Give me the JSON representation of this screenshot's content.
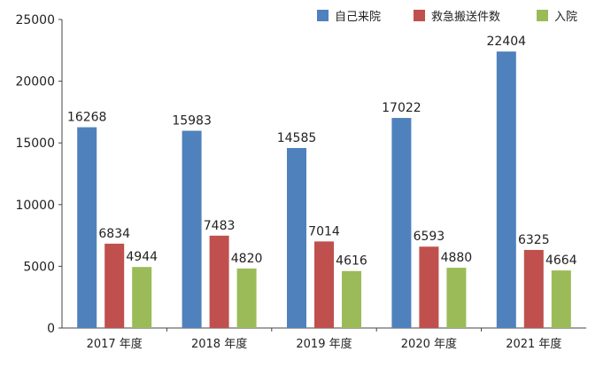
{
  "chart_data": {
    "type": "bar",
    "categories": [
      "2017 年度",
      "2018 年度",
      "2019 年度",
      "2020 年度",
      "2021 年度"
    ],
    "series": [
      {
        "name": "自己来院",
        "color": "#4f81bd",
        "values": [
          16268,
          15983,
          14585,
          17022,
          22404
        ]
      },
      {
        "name": "救急搬送件数",
        "color": "#c0504d",
        "values": [
          6834,
          7483,
          7014,
          6593,
          6325
        ]
      },
      {
        "name": "入院",
        "color": "#9bbb59",
        "values": [
          4944,
          4820,
          4616,
          4880,
          4664
        ]
      }
    ],
    "title": "",
    "xlabel": "",
    "ylabel": "",
    "ylim": [
      0,
      25000
    ],
    "yticks": [
      0,
      5000,
      10000,
      15000,
      20000,
      25000
    ],
    "data_labels": true,
    "grid": false,
    "legend": "top-right"
  }
}
